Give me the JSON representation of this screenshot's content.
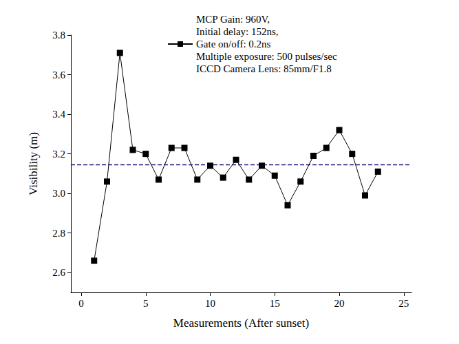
{
  "chart_data": {
    "type": "line",
    "x_label": "Measurements (After sunset)",
    "y_label": "Visibility (m)",
    "xlim": [
      -0.8,
      25.6
    ],
    "xticks": [
      0,
      5,
      10,
      15,
      20,
      25
    ],
    "ylim": [
      2.5,
      3.8
    ],
    "yticks": [
      2.6,
      2.8,
      {
        "value": 3,
        "label": "3.0"
      },
      3.2,
      3.4,
      3.6,
      3.8
    ],
    "grid": false,
    "legend": "upper right",
    "series": [
      {
        "name": "MCP Gain: 960V,\nInitial delay: 152ns,\nGate on/off: 0.2ns\nMultiple exposure: 500 pulses/sec\nICCD Camera Lens: 85mm/F1.8",
        "color": "#000000",
        "marker": "square",
        "line_style": "solid",
        "x": [
          1,
          2,
          3,
          4,
          5,
          6,
          7,
          8,
          9,
          10,
          11,
          12,
          13,
          14,
          15,
          16,
          17,
          18,
          19,
          20,
          21,
          22,
          23
        ],
        "values": [
          2.66,
          3.06,
          3.71,
          3.22,
          3.2,
          3.07,
          3.23,
          3.23,
          3.07,
          3.14,
          3.08,
          3.17,
          3.07,
          3.14,
          3.09,
          2.94,
          3.06,
          3.19,
          3.23,
          3.32,
          3.2,
          2.99,
          3.11
        ]
      },
      {
        "color": "#1a1a80",
        "marker": "none",
        "line_style": "dashed",
        "x": [
          -0.8,
          25.6
        ],
        "values": [
          3.145,
          3.145
        ]
      }
    ]
  }
}
